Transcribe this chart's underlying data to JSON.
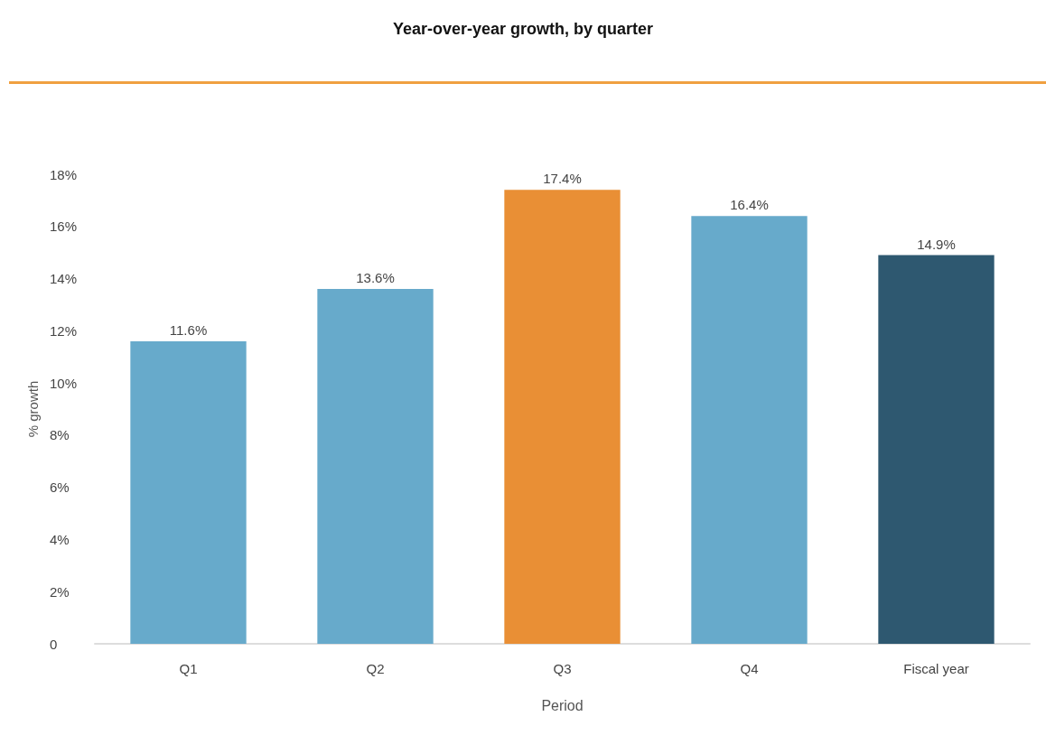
{
  "chart_data": {
    "type": "bar",
    "title": "Year-over-year growth, by quarter",
    "xlabel": "Period",
    "ylabel": "% growth",
    "categories": [
      "Q1",
      "Q2",
      "Q3",
      "Q4",
      "Fiscal year"
    ],
    "values": [
      11.6,
      13.6,
      17.4,
      16.4,
      14.9
    ],
    "colors": [
      "#67aacb",
      "#67aacb",
      "#e98f35",
      "#67aacb",
      "#2e5870"
    ],
    "ylim": [
      0,
      18
    ],
    "yticks": [
      0,
      {
        "value": 2,
        "label": "2%"
      },
      {
        "value": 4,
        "label": "4%"
      },
      {
        "value": 6,
        "label": "6%"
      },
      {
        "value": 8,
        "label": "8%"
      },
      {
        "value": 10,
        "label": "10%"
      },
      {
        "value": 12,
        "label": "12%"
      },
      {
        "value": 14,
        "label": "14%"
      },
      {
        "value": 16,
        "label": "16%"
      },
      {
        "value": 18,
        "label": "18%"
      }
    ],
    "value_labels": [
      "11.6%",
      "13.6%",
      "17.4%",
      "16.4%",
      "14.9%"
    ],
    "grid": false
  }
}
